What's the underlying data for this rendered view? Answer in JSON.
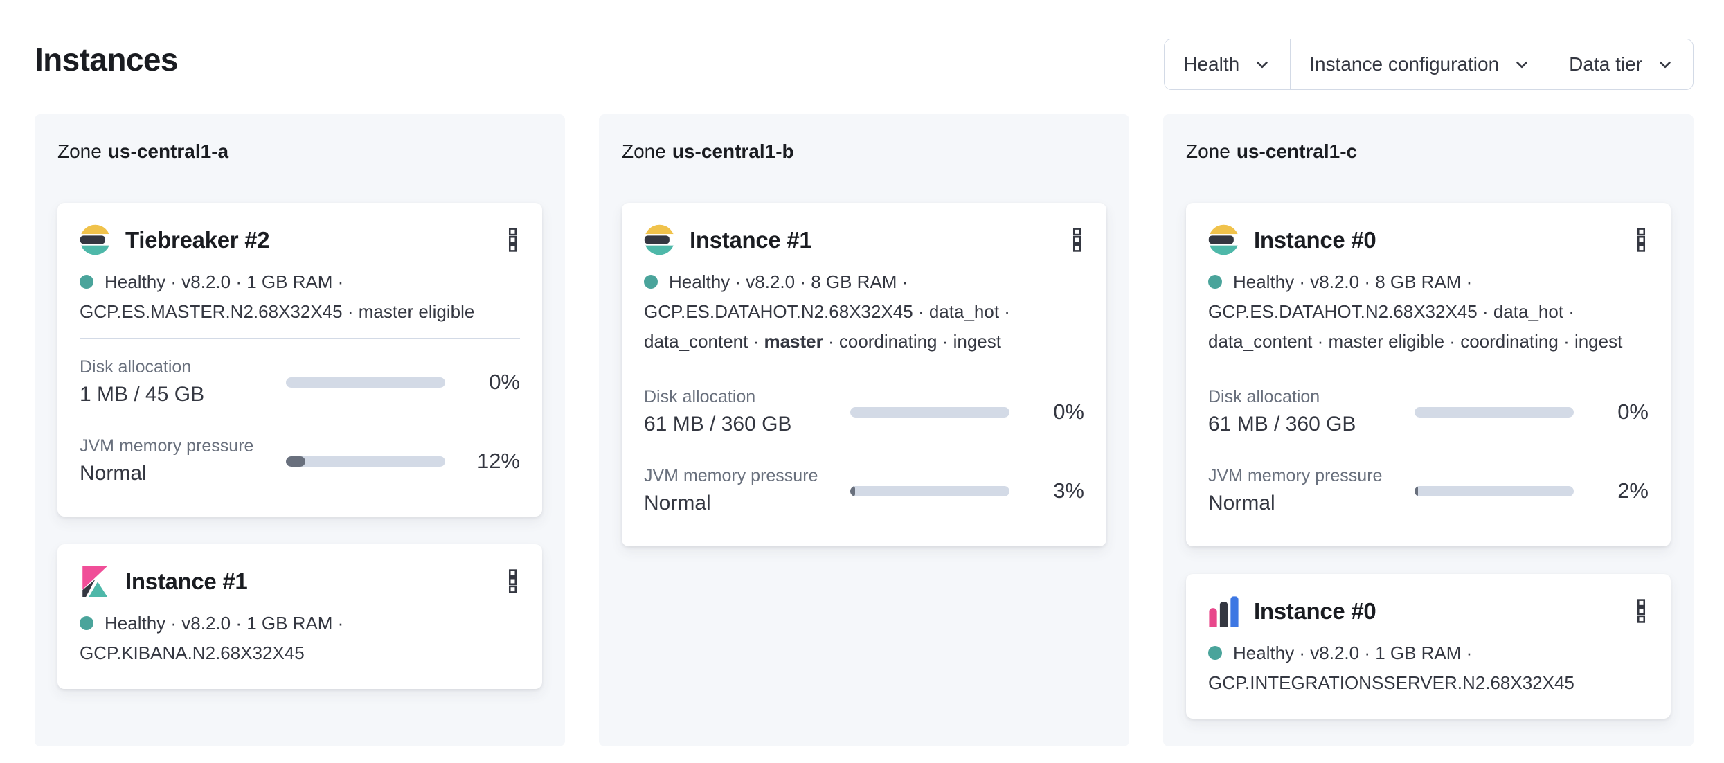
{
  "page": {
    "title": "Instances"
  },
  "filters": [
    {
      "label": "Health"
    },
    {
      "label": "Instance configuration"
    },
    {
      "label": "Data tier"
    }
  ],
  "colors": {
    "health_dot": "#4AA49B",
    "bar_track": "#D3DAE6",
    "bar_fill": "#69707D",
    "panel_bg": "#F5F7FA",
    "divider": "#D3DAE6",
    "border": "#D3DAE6",
    "title_text": "#1A1C21",
    "body_text": "#343741",
    "muted_text": "#69707D",
    "es_yellow": "#F0C24B",
    "es_dark": "#343741",
    "es_teal": "#4EB8A9",
    "kibana_pink": "#F04E98",
    "kibana_dark": "#343741",
    "kibana_teal": "#4EB8A9",
    "integrations_pink": "#E8478B",
    "integrations_dark": "#343741",
    "integrations_blue": "#3D77E3"
  },
  "zones": [
    {
      "label_prefix": "Zone",
      "name": "us-central1-a",
      "cards": [
        {
          "logo": "elasticsearch",
          "title": "Tiebreaker #2",
          "health": "Healthy",
          "meta_lines": [
            [
              {
                "text": "Healthy · v8.2.0 · 1 GB RAM ·"
              }
            ],
            [
              {
                "text": "GCP.ES.MASTER.N2.68X32X45 · master eligible"
              }
            ]
          ],
          "metrics": [
            {
              "label": "Disk allocation",
              "value": "1 MB / 45 GB",
              "percent": "0%",
              "fill_pct": 0
            },
            {
              "label": "JVM memory pressure",
              "value": "Normal",
              "percent": "12%",
              "fill_pct": 12
            }
          ]
        },
        {
          "logo": "kibana",
          "title": "Instance #1",
          "health": "Healthy",
          "meta_lines": [
            [
              {
                "text": "Healthy · v8.2.0 · 1 GB RAM ·"
              }
            ],
            [
              {
                "text": "GCP.KIBANA.N2.68X32X45"
              }
            ]
          ],
          "metrics": []
        }
      ]
    },
    {
      "label_prefix": "Zone",
      "name": "us-central1-b",
      "cards": [
        {
          "logo": "elasticsearch",
          "title": "Instance #1",
          "health": "Healthy",
          "meta_lines": [
            [
              {
                "text": "Healthy · v8.2.0 · 8 GB RAM ·"
              }
            ],
            [
              {
                "text": "GCP.ES.DATAHOT.N2.68X32X45 · data_hot ·"
              }
            ],
            [
              {
                "text": "data_content · "
              },
              {
                "text": "master",
                "bold": true
              },
              {
                "text": " · coordinating · ingest"
              }
            ]
          ],
          "metrics": [
            {
              "label": "Disk allocation",
              "value": "61 MB / 360 GB",
              "percent": "0%",
              "fill_pct": 0
            },
            {
              "label": "JVM memory pressure",
              "value": "Normal",
              "percent": "3%",
              "fill_pct": 3
            }
          ]
        }
      ]
    },
    {
      "label_prefix": "Zone",
      "name": "us-central1-c",
      "cards": [
        {
          "logo": "elasticsearch",
          "title": "Instance #0",
          "health": "Healthy",
          "meta_lines": [
            [
              {
                "text": "Healthy · v8.2.0 · 8 GB RAM ·"
              }
            ],
            [
              {
                "text": "GCP.ES.DATAHOT.N2.68X32X45 · data_hot ·"
              }
            ],
            [
              {
                "text": "data_content · master eligible · coordinating · ingest"
              }
            ]
          ],
          "metrics": [
            {
              "label": "Disk allocation",
              "value": "61 MB / 360 GB",
              "percent": "0%",
              "fill_pct": 0
            },
            {
              "label": "JVM memory pressure",
              "value": "Normal",
              "percent": "2%",
              "fill_pct": 2
            }
          ]
        },
        {
          "logo": "integrations-server",
          "title": "Instance #0",
          "health": "Healthy",
          "meta_lines": [
            [
              {
                "text": "Healthy · v8.2.0 · 1 GB RAM ·"
              }
            ],
            [
              {
                "text": "GCP.INTEGRATIONSSERVER.N2.68X32X45"
              }
            ]
          ],
          "metrics": []
        }
      ]
    }
  ]
}
